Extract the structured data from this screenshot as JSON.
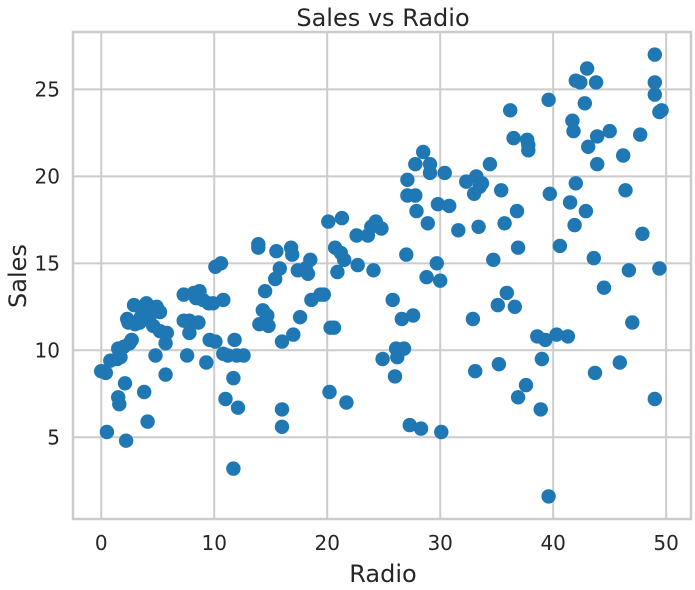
{
  "chart_data": {
    "type": "scatter",
    "title": "Sales vs Radio",
    "xlabel": "Radio",
    "ylabel": "Sales",
    "xlim": [
      -2.5,
      52.2
    ],
    "ylim": [
      0.3,
      28.3
    ],
    "xticks": [
      0,
      10,
      20,
      30,
      40,
      50
    ],
    "yticks": [
      5,
      10,
      15,
      20,
      25
    ],
    "grid": true,
    "color": "#1f77b4",
    "points": [
      [
        0,
        8.8
      ],
      [
        0.4,
        8.7
      ],
      [
        0.5,
        5.3
      ],
      [
        0.8,
        9.4
      ],
      [
        1.4,
        9.5
      ],
      [
        1.5,
        10.1
      ],
      [
        1.5,
        7.3
      ],
      [
        1.6,
        6.9
      ],
      [
        1.7,
        9.6
      ],
      [
        2.0,
        10.2
      ],
      [
        2.1,
        8.1
      ],
      [
        2.2,
        4.8
      ],
      [
        2.3,
        11.8
      ],
      [
        2.4,
        11.6
      ],
      [
        2.5,
        10.4
      ],
      [
        2.7,
        10.6
      ],
      [
        2.9,
        12.6
      ],
      [
        3.0,
        11.5
      ],
      [
        3.4,
        11.6
      ],
      [
        3.5,
        11.9
      ],
      [
        3.7,
        12.2
      ],
      [
        3.8,
        7.6
      ],
      [
        4.0,
        12.7
      ],
      [
        4.1,
        11.9
      ],
      [
        4.1,
        5.9
      ],
      [
        4.3,
        12.0
      ],
      [
        4.6,
        11.4
      ],
      [
        4.8,
        9.7
      ],
      [
        4.9,
        12.5
      ],
      [
        5.2,
        11.1
      ],
      [
        5.2,
        12.2
      ],
      [
        5.7,
        10.4
      ],
      [
        5.7,
        8.6
      ],
      [
        5.8,
        11.0
      ],
      [
        7.3,
        13.2
      ],
      [
        7.3,
        11.7
      ],
      [
        7.6,
        9.7
      ],
      [
        7.8,
        11.0
      ],
      [
        7.8,
        11.7
      ],
      [
        8.2,
        13.3
      ],
      [
        8.4,
        13.0
      ],
      [
        8.6,
        11.6
      ],
      [
        8.7,
        13.4
      ],
      [
        9.0,
        12.9
      ],
      [
        9.3,
        9.3
      ],
      [
        9.5,
        12.7
      ],
      [
        9.6,
        10.6
      ],
      [
        9.9,
        12.7
      ],
      [
        10.1,
        14.8
      ],
      [
        10.1,
        10.5
      ],
      [
        10.6,
        15.0
      ],
      [
        10.8,
        12.9
      ],
      [
        10.8,
        9.8
      ],
      [
        11.0,
        7.2
      ],
      [
        11.2,
        9.7
      ],
      [
        11.7,
        3.2
      ],
      [
        11.7,
        8.4
      ],
      [
        11.8,
        10.6
      ],
      [
        12.0,
        9.7
      ],
      [
        12.1,
        6.7
      ],
      [
        12.6,
        9.7
      ],
      [
        13.9,
        16.1
      ],
      [
        13.9,
        15.9
      ],
      [
        14.0,
        11.5
      ],
      [
        14.3,
        12.3
      ],
      [
        14.5,
        13.4
      ],
      [
        14.7,
        12.0
      ],
      [
        14.8,
        11.4
      ],
      [
        15.4,
        14.1
      ],
      [
        15.5,
        15.7
      ],
      [
        15.8,
        14.7
      ],
      [
        16.0,
        10.5
      ],
      [
        16.0,
        5.6
      ],
      [
        16.0,
        6.6
      ],
      [
        16.8,
        15.9
      ],
      [
        16.9,
        15.5
      ],
      [
        17.0,
        10.9
      ],
      [
        17.4,
        14.6
      ],
      [
        17.6,
        11.9
      ],
      [
        18.1,
        14.7
      ],
      [
        18.3,
        14.4
      ],
      [
        18.5,
        15.2
      ],
      [
        18.6,
        12.9
      ],
      [
        19.4,
        13.2
      ],
      [
        19.7,
        13.2
      ],
      [
        20.1,
        17.4
      ],
      [
        20.2,
        7.6
      ],
      [
        20.3,
        11.3
      ],
      [
        20.6,
        11.3
      ],
      [
        20.7,
        15.9
      ],
      [
        20.9,
        14.5
      ],
      [
        21.2,
        15.6
      ],
      [
        21.3,
        17.6
      ],
      [
        21.5,
        15.2
      ],
      [
        21.7,
        7.0
      ],
      [
        22.6,
        16.6
      ],
      [
        22.7,
        14.9
      ],
      [
        23.6,
        16.6
      ],
      [
        23.9,
        17.1
      ],
      [
        24.1,
        14.6
      ],
      [
        24.3,
        17.4
      ],
      [
        24.8,
        17.0
      ],
      [
        24.9,
        9.5
      ],
      [
        25.8,
        12.9
      ],
      [
        26.0,
        8.5
      ],
      [
        26.1,
        10.1
      ],
      [
        26.2,
        9.6
      ],
      [
        26.6,
        11.8
      ],
      [
        26.8,
        10.1
      ],
      [
        27.0,
        15.5
      ],
      [
        27.1,
        19.8
      ],
      [
        27.1,
        18.9
      ],
      [
        27.3,
        5.7
      ],
      [
        27.6,
        12.0
      ],
      [
        27.8,
        18.9
      ],
      [
        27.8,
        20.7
      ],
      [
        27.9,
        18.0
      ],
      [
        28.3,
        5.5
      ],
      [
        28.5,
        21.4
      ],
      [
        28.8,
        14.2
      ],
      [
        28.9,
        17.3
      ],
      [
        29.1,
        20.2
      ],
      [
        29.1,
        20.7
      ],
      [
        29.7,
        15.0
      ],
      [
        29.8,
        18.4
      ],
      [
        30.0,
        14.0
      ],
      [
        30.1,
        5.3
      ],
      [
        30.4,
        20.2
      ],
      [
        30.8,
        18.3
      ],
      [
        31.6,
        16.9
      ],
      [
        32.3,
        19.7
      ],
      [
        32.9,
        11.8
      ],
      [
        33.0,
        19.0
      ],
      [
        33.1,
        8.8
      ],
      [
        33.2,
        20.0
      ],
      [
        33.4,
        17.1
      ],
      [
        33.5,
        19.4
      ],
      [
        33.7,
        19.6
      ],
      [
        34.4,
        20.7
      ],
      [
        34.7,
        15.2
      ],
      [
        35.1,
        12.6
      ],
      [
        35.2,
        9.2
      ],
      [
        35.4,
        19.2
      ],
      [
        35.7,
        17.3
      ],
      [
        35.9,
        13.3
      ],
      [
        36.2,
        23.8
      ],
      [
        36.5,
        22.2
      ],
      [
        36.6,
        12.5
      ],
      [
        36.8,
        18.0
      ],
      [
        36.9,
        7.3
      ],
      [
        36.9,
        15.9
      ],
      [
        37.6,
        8.0
      ],
      [
        37.7,
        22.1
      ],
      [
        37.8,
        21.8
      ],
      [
        37.8,
        21.5
      ],
      [
        38.6,
        10.8
      ],
      [
        38.9,
        6.6
      ],
      [
        39.0,
        9.5
      ],
      [
        39.3,
        10.6
      ],
      [
        39.6,
        1.6
      ],
      [
        39.6,
        24.4
      ],
      [
        39.7,
        19.0
      ],
      [
        40.3,
        10.9
      ],
      [
        40.6,
        16.0
      ],
      [
        41.3,
        10.8
      ],
      [
        41.5,
        18.5
      ],
      [
        41.7,
        23.2
      ],
      [
        41.8,
        22.6
      ],
      [
        41.9,
        17.2
      ],
      [
        42.0,
        25.5
      ],
      [
        42.0,
        19.6
      ],
      [
        42.4,
        25.4
      ],
      [
        42.8,
        24.2
      ],
      [
        42.9,
        18.0
      ],
      [
        43.0,
        26.2
      ],
      [
        43.1,
        21.7
      ],
      [
        43.6,
        15.3
      ],
      [
        43.7,
        8.7
      ],
      [
        43.8,
        25.4
      ],
      [
        43.9,
        22.3
      ],
      [
        43.9,
        20.7
      ],
      [
        44.5,
        13.6
      ],
      [
        45.0,
        22.6
      ],
      [
        45.9,
        9.3
      ],
      [
        46.2,
        21.2
      ],
      [
        46.4,
        19.2
      ],
      [
        46.7,
        14.6
      ],
      [
        47.0,
        11.6
      ],
      [
        47.7,
        22.4
      ],
      [
        47.9,
        16.7
      ],
      [
        49.0,
        27.0
      ],
      [
        49.0,
        25.4
      ],
      [
        49.0,
        24.7
      ],
      [
        49.0,
        7.2
      ],
      [
        49.4,
        23.7
      ],
      [
        49.4,
        14.7
      ],
      [
        49.6,
        23.8
      ]
    ]
  }
}
